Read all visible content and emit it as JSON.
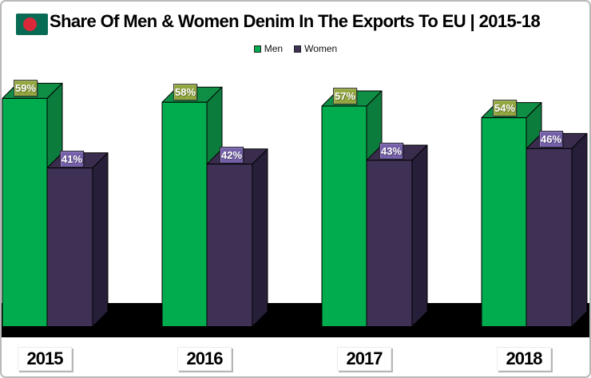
{
  "window": {
    "background": "#ffffff",
    "border_color": "#b9b9b9"
  },
  "header": {
    "title": "Share Of Men & Women Denim In The Exports To EU | 2015-18",
    "flag_icon": {
      "name": "bangladesh-flag-icon",
      "field_color": "#076a52",
      "disc_color": "#d8283a"
    }
  },
  "legend": {
    "position": "top-center",
    "items": [
      {
        "label": "Men",
        "color": "#00ac4e"
      },
      {
        "label": "Women",
        "color": "#3e3155"
      }
    ]
  },
  "chart_data": {
    "type": "bar",
    "projection": "3d",
    "title": "Share Of Men & Women Denim In The Exports To EU | 2015-18",
    "categories": [
      "2015",
      "2016",
      "2017",
      "2018"
    ],
    "series": [
      {
        "name": "Men",
        "values": [
          59,
          58,
          57,
          54
        ],
        "unit": "%",
        "data_labels": [
          "59%",
          "58%",
          "57%",
          "54%"
        ],
        "front_color": "#00ac4e",
        "top_color": "#0f8f45",
        "side_color": "#0c7c3c",
        "label_fill": "#93a740",
        "label_border": "#3b3b3b"
      },
      {
        "name": "Women",
        "values": [
          41,
          42,
          43,
          46
        ],
        "unit": "%",
        "data_labels": [
          "41%",
          "42%",
          "43%",
          "46%"
        ],
        "front_color": "#3e3155",
        "top_color": "#392c4d",
        "side_color": "#271f39",
        "label_fill": "#7460a8",
        "label_border": "#2a2438"
      }
    ],
    "value_axis_visible": false,
    "gridlines": false,
    "floor_color": "#000000",
    "outline_color": "#000000",
    "legend_position": "top-center"
  }
}
